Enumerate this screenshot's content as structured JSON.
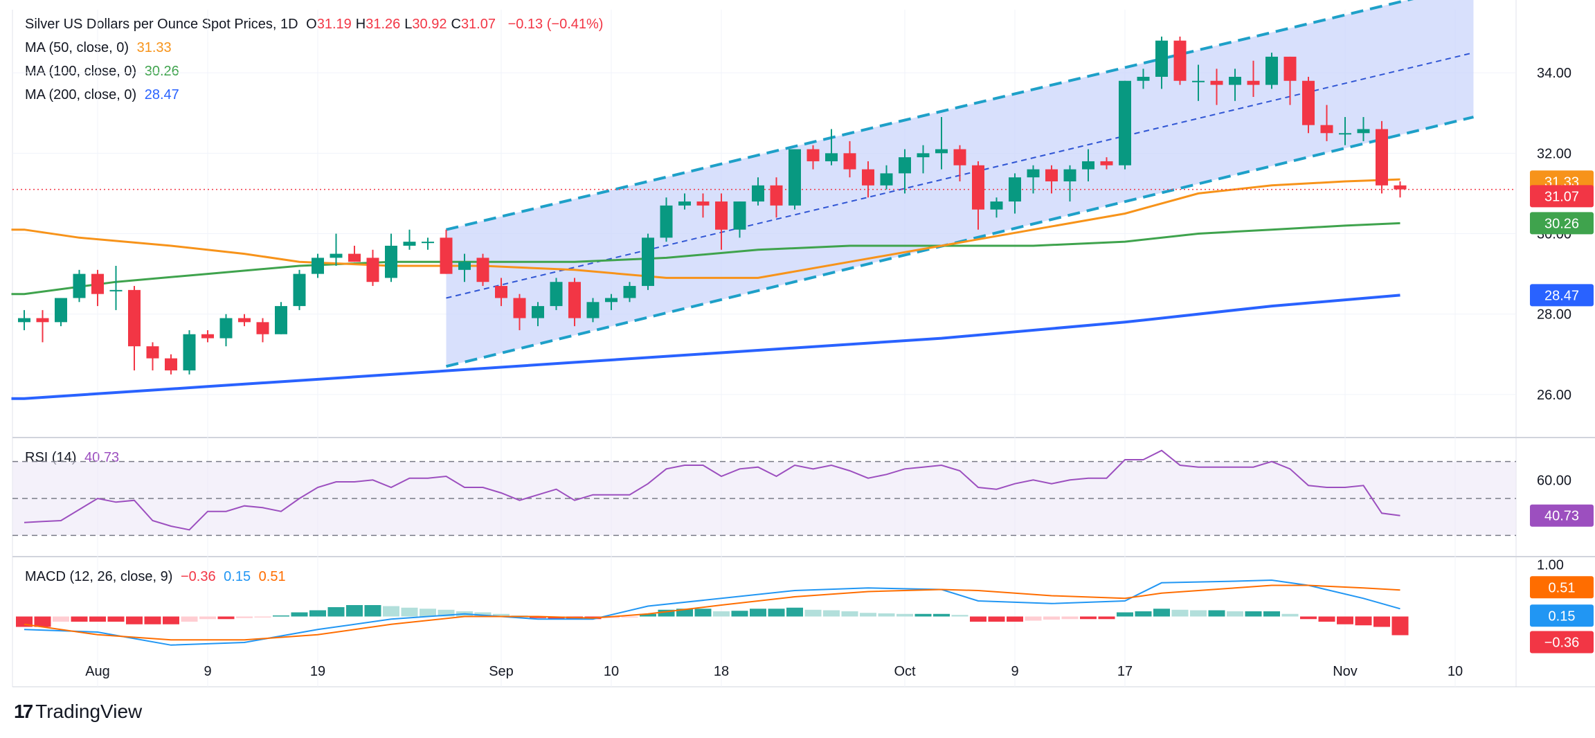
{
  "header": {
    "title": "Silver US Dollars per Ounce Spot Prices, 1D",
    "ohlc": [
      {
        "label": "O",
        "value": "31.19"
      },
      {
        "label": "H",
        "value": "31.26"
      },
      {
        "label": "L",
        "value": "30.92"
      },
      {
        "label": "C",
        "value": "31.07"
      }
    ],
    "change": "−0.13 (−0.41%)"
  },
  "indicators": {
    "ma50": {
      "label": "MA (50, close, 0)",
      "value": "31.33",
      "color": "#f7931a"
    },
    "ma100": {
      "label": "MA (100, close, 0)",
      "value": "30.26",
      "color": "#3fa34d"
    },
    "ma200": {
      "label": "MA (200, close, 0)",
      "value": "28.47",
      "color": "#2962ff"
    },
    "rsi": {
      "label": "RSI (14)",
      "value": "40.73",
      "color": "#9c4fbf"
    },
    "macd": {
      "label": "MACD (12, 26, close, 9)",
      "hist": "−0.36",
      "macd": "0.15",
      "signal": "0.51",
      "hist_color": "#f23645",
      "macd_color": "#2196f3",
      "signal_color": "#ff6d00"
    }
  },
  "price_badges": [
    {
      "text": "31.33",
      "color": "#f7931a"
    },
    {
      "text": "31.07",
      "color": "#f23645"
    },
    {
      "text": "30.26",
      "color": "#3fa34d"
    },
    {
      "text": "28.47",
      "color": "#2962ff"
    }
  ],
  "rsi_badge": {
    "text": "40.73",
    "color": "#9c4fbf"
  },
  "macd_badges": [
    {
      "text": "0.51",
      "color": "#ff6d00"
    },
    {
      "text": "0.15",
      "color": "#2196f3"
    },
    {
      "text": "−0.36",
      "color": "#f23645"
    }
  ],
  "brand": "TradingView",
  "colors": {
    "up": "#089981",
    "down": "#f23645",
    "channel": "#dbe3fb",
    "channel_line": "#1ea0c8"
  },
  "chart_data": {
    "type": "candlestick",
    "price_axis_ticks": [
      "34.00",
      "32.00",
      "30.00",
      "28.00",
      "26.00"
    ],
    "price_range": [
      25.0,
      35.5
    ],
    "rsi_ticks": [
      "60.00"
    ],
    "rsi_range": [
      20,
      80
    ],
    "macd_ticks": [
      "1.00"
    ],
    "macd_range": [
      -0.9,
      1.1
    ],
    "x_ticks": [
      {
        "label": "Aug",
        "index": 4
      },
      {
        "label": "9",
        "index": 10
      },
      {
        "label": "19",
        "index": 16
      },
      {
        "label": "Sep",
        "index": 26
      },
      {
        "label": "10",
        "index": 32
      },
      {
        "label": "18",
        "index": 38
      },
      {
        "label": "Oct",
        "index": 48
      },
      {
        "label": "9",
        "index": 54
      },
      {
        "label": "17",
        "index": 60
      },
      {
        "label": "Nov",
        "index": 72
      },
      {
        "label": "10",
        "index": 78
      }
    ],
    "candles": [
      {
        "o": 27.8,
        "h": 28.1,
        "l": 27.6,
        "c": 27.9
      },
      {
        "o": 27.9,
        "h": 28.1,
        "l": 27.3,
        "c": 27.8
      },
      {
        "o": 27.8,
        "h": 28.4,
        "l": 27.7,
        "c": 28.4
      },
      {
        "o": 28.4,
        "h": 29.1,
        "l": 28.3,
        "c": 29.0
      },
      {
        "o": 29.0,
        "h": 29.1,
        "l": 28.2,
        "c": 28.5
      },
      {
        "o": 28.6,
        "h": 29.2,
        "l": 28.1,
        "c": 28.6
      },
      {
        "o": 28.6,
        "h": 28.7,
        "l": 26.6,
        "c": 27.2
      },
      {
        "o": 27.2,
        "h": 27.3,
        "l": 26.6,
        "c": 26.9
      },
      {
        "o": 26.9,
        "h": 27.0,
        "l": 26.5,
        "c": 26.6
      },
      {
        "o": 26.6,
        "h": 27.6,
        "l": 26.5,
        "c": 27.5
      },
      {
        "o": 27.5,
        "h": 27.6,
        "l": 27.3,
        "c": 27.4
      },
      {
        "o": 27.4,
        "h": 28.0,
        "l": 27.2,
        "c": 27.9
      },
      {
        "o": 27.9,
        "h": 28.0,
        "l": 27.7,
        "c": 27.8
      },
      {
        "o": 27.8,
        "h": 27.9,
        "l": 27.3,
        "c": 27.5
      },
      {
        "o": 27.5,
        "h": 28.3,
        "l": 27.5,
        "c": 28.2
      },
      {
        "o": 28.2,
        "h": 29.1,
        "l": 28.1,
        "c": 29.0
      },
      {
        "o": 29.0,
        "h": 29.5,
        "l": 28.9,
        "c": 29.4
      },
      {
        "o": 29.4,
        "h": 30.0,
        "l": 29.2,
        "c": 29.5
      },
      {
        "o": 29.5,
        "h": 29.7,
        "l": 29.3,
        "c": 29.3
      },
      {
        "o": 29.4,
        "h": 29.6,
        "l": 28.7,
        "c": 28.8
      },
      {
        "o": 28.9,
        "h": 30.0,
        "l": 28.8,
        "c": 29.7
      },
      {
        "o": 29.7,
        "h": 30.1,
        "l": 29.6,
        "c": 29.8
      },
      {
        "o": 29.8,
        "h": 29.9,
        "l": 29.6,
        "c": 29.8
      },
      {
        "o": 29.9,
        "h": 30.1,
        "l": 29.0,
        "c": 29.0
      },
      {
        "o": 29.1,
        "h": 29.5,
        "l": 28.8,
        "c": 29.3
      },
      {
        "o": 29.4,
        "h": 29.5,
        "l": 28.7,
        "c": 28.8
      },
      {
        "o": 28.7,
        "h": 28.9,
        "l": 28.2,
        "c": 28.4
      },
      {
        "o": 28.4,
        "h": 28.5,
        "l": 27.6,
        "c": 27.9
      },
      {
        "o": 27.9,
        "h": 28.3,
        "l": 27.7,
        "c": 28.2
      },
      {
        "o": 28.2,
        "h": 28.9,
        "l": 28.1,
        "c": 28.8
      },
      {
        "o": 28.8,
        "h": 28.9,
        "l": 27.7,
        "c": 27.9
      },
      {
        "o": 27.9,
        "h": 28.4,
        "l": 27.8,
        "c": 28.3
      },
      {
        "o": 28.3,
        "h": 28.5,
        "l": 28.1,
        "c": 28.4
      },
      {
        "o": 28.4,
        "h": 28.8,
        "l": 28.3,
        "c": 28.7
      },
      {
        "o": 28.7,
        "h": 30.0,
        "l": 28.6,
        "c": 29.9
      },
      {
        "o": 29.9,
        "h": 30.9,
        "l": 29.8,
        "c": 30.7
      },
      {
        "o": 30.7,
        "h": 31.0,
        "l": 30.6,
        "c": 30.8
      },
      {
        "o": 30.8,
        "h": 31.0,
        "l": 30.4,
        "c": 30.7
      },
      {
        "o": 30.8,
        "h": 31.0,
        "l": 29.6,
        "c": 30.1
      },
      {
        "o": 30.1,
        "h": 30.8,
        "l": 29.9,
        "c": 30.8
      },
      {
        "o": 30.8,
        "h": 31.4,
        "l": 30.7,
        "c": 31.2
      },
      {
        "o": 31.2,
        "h": 31.4,
        "l": 30.4,
        "c": 30.7
      },
      {
        "o": 30.7,
        "h": 32.1,
        "l": 30.6,
        "c": 32.1
      },
      {
        "o": 32.1,
        "h": 32.2,
        "l": 31.6,
        "c": 31.8
      },
      {
        "o": 31.8,
        "h": 32.6,
        "l": 31.7,
        "c": 32.0
      },
      {
        "o": 32.0,
        "h": 32.3,
        "l": 31.4,
        "c": 31.6
      },
      {
        "o": 31.6,
        "h": 31.8,
        "l": 30.9,
        "c": 31.2
      },
      {
        "o": 31.2,
        "h": 31.7,
        "l": 31.1,
        "c": 31.5
      },
      {
        "o": 31.5,
        "h": 32.1,
        "l": 31.0,
        "c": 31.9
      },
      {
        "o": 31.9,
        "h": 32.2,
        "l": 31.5,
        "c": 32.0
      },
      {
        "o": 32.0,
        "h": 32.9,
        "l": 31.6,
        "c": 32.1
      },
      {
        "o": 32.1,
        "h": 32.2,
        "l": 31.3,
        "c": 31.7
      },
      {
        "o": 31.7,
        "h": 31.8,
        "l": 30.1,
        "c": 30.6
      },
      {
        "o": 30.6,
        "h": 30.9,
        "l": 30.4,
        "c": 30.8
      },
      {
        "o": 30.8,
        "h": 31.5,
        "l": 30.5,
        "c": 31.4
      },
      {
        "o": 31.4,
        "h": 31.7,
        "l": 31.0,
        "c": 31.6
      },
      {
        "o": 31.6,
        "h": 31.7,
        "l": 31.0,
        "c": 31.3
      },
      {
        "o": 31.3,
        "h": 31.7,
        "l": 30.8,
        "c": 31.6
      },
      {
        "o": 31.6,
        "h": 32.1,
        "l": 31.3,
        "c": 31.8
      },
      {
        "o": 31.8,
        "h": 31.9,
        "l": 31.6,
        "c": 31.7
      },
      {
        "o": 31.7,
        "h": 33.8,
        "l": 31.6,
        "c": 33.8
      },
      {
        "o": 33.8,
        "h": 34.1,
        "l": 33.6,
        "c": 33.9
      },
      {
        "o": 33.9,
        "h": 34.9,
        "l": 33.6,
        "c": 34.8
      },
      {
        "o": 34.8,
        "h": 34.9,
        "l": 33.7,
        "c": 33.8
      },
      {
        "o": 33.8,
        "h": 34.2,
        "l": 33.3,
        "c": 33.8
      },
      {
        "o": 33.8,
        "h": 34.1,
        "l": 33.2,
        "c": 33.7
      },
      {
        "o": 33.7,
        "h": 34.1,
        "l": 33.3,
        "c": 33.9
      },
      {
        "o": 33.8,
        "h": 34.3,
        "l": 33.4,
        "c": 33.7
      },
      {
        "o": 33.7,
        "h": 34.5,
        "l": 33.6,
        "c": 34.4
      },
      {
        "o": 34.4,
        "h": 34.4,
        "l": 33.2,
        "c": 33.8
      },
      {
        "o": 33.8,
        "h": 33.9,
        "l": 32.5,
        "c": 32.7
      },
      {
        "o": 32.7,
        "h": 33.2,
        "l": 32.3,
        "c": 32.5
      },
      {
        "o": 32.5,
        "h": 32.9,
        "l": 32.2,
        "c": 32.5
      },
      {
        "o": 32.5,
        "h": 32.9,
        "l": 32.3,
        "c": 32.6
      },
      {
        "o": 32.6,
        "h": 32.8,
        "l": 31.0,
        "c": 31.2
      },
      {
        "o": 31.2,
        "h": 31.3,
        "l": 30.9,
        "c": 31.1
      }
    ],
    "ma50": [
      [
        0,
        30.1
      ],
      [
        3,
        29.9
      ],
      [
        8,
        29.7
      ],
      [
        12,
        29.5
      ],
      [
        15,
        29.3
      ],
      [
        20,
        29.2
      ],
      [
        25,
        29.2
      ],
      [
        30,
        29.1
      ],
      [
        35,
        28.9
      ],
      [
        40,
        28.9
      ],
      [
        45,
        29.3
      ],
      [
        50,
        29.7
      ],
      [
        55,
        30.1
      ],
      [
        60,
        30.5
      ],
      [
        64,
        31.0
      ],
      [
        68,
        31.2
      ],
      [
        72,
        31.3
      ],
      [
        75,
        31.35
      ]
    ],
    "ma100": [
      [
        0,
        28.5
      ],
      [
        5,
        28.8
      ],
      [
        10,
        29.0
      ],
      [
        15,
        29.2
      ],
      [
        20,
        29.3
      ],
      [
        25,
        29.3
      ],
      [
        30,
        29.3
      ],
      [
        35,
        29.4
      ],
      [
        40,
        29.6
      ],
      [
        45,
        29.7
      ],
      [
        50,
        29.7
      ],
      [
        55,
        29.7
      ],
      [
        60,
        29.8
      ],
      [
        64,
        30.0
      ],
      [
        68,
        30.1
      ],
      [
        72,
        30.2
      ],
      [
        75,
        30.26
      ]
    ],
    "ma200": [
      [
        0,
        25.9
      ],
      [
        10,
        26.2
      ],
      [
        20,
        26.5
      ],
      [
        30,
        26.8
      ],
      [
        40,
        27.1
      ],
      [
        50,
        27.4
      ],
      [
        60,
        27.8
      ],
      [
        68,
        28.2
      ],
      [
        75,
        28.47
      ]
    ],
    "channel": {
      "start_index": 23,
      "end_index": 79,
      "lower_start": 26.7,
      "upper_start": 30.1,
      "lower_end": 32.9,
      "upper_end": 36.2,
      "mid_start": 28.4,
      "mid_end": 34.5
    },
    "rsi": [
      [
        0,
        37
      ],
      [
        1,
        37.5
      ],
      [
        2,
        38
      ],
      [
        3,
        44
      ],
      [
        4,
        50
      ],
      [
        5,
        48
      ],
      [
        6,
        49
      ],
      [
        7,
        38
      ],
      [
        8,
        35
      ],
      [
        9,
        33
      ],
      [
        10,
        43
      ],
      [
        11,
        43
      ],
      [
        12,
        46
      ],
      [
        13,
        45
      ],
      [
        14,
        43
      ],
      [
        15,
        50
      ],
      [
        16,
        56
      ],
      [
        17,
        59
      ],
      [
        18,
        59
      ],
      [
        19,
        60
      ],
      [
        20,
        56
      ],
      [
        21,
        61
      ],
      [
        22,
        61
      ],
      [
        23,
        62
      ],
      [
        24,
        56
      ],
      [
        25,
        56
      ],
      [
        26,
        53
      ],
      [
        27,
        49
      ],
      [
        28,
        52
      ],
      [
        29,
        55
      ],
      [
        30,
        49
      ],
      [
        31,
        52
      ],
      [
        32,
        52
      ],
      [
        33,
        52
      ],
      [
        34,
        58
      ],
      [
        35,
        66
      ],
      [
        36,
        68
      ],
      [
        37,
        68
      ],
      [
        38,
        62
      ],
      [
        39,
        66
      ],
      [
        40,
        67
      ],
      [
        41,
        62
      ],
      [
        42,
        68
      ],
      [
        43,
        66
      ],
      [
        44,
        68
      ],
      [
        45,
        65
      ],
      [
        46,
        61
      ],
      [
        47,
        63
      ],
      [
        48,
        66
      ],
      [
        49,
        67
      ],
      [
        50,
        68
      ],
      [
        51,
        65
      ],
      [
        52,
        56
      ],
      [
        53,
        55
      ],
      [
        54,
        58
      ],
      [
        55,
        60
      ],
      [
        56,
        58
      ],
      [
        57,
        60
      ],
      [
        58,
        61
      ],
      [
        59,
        61
      ],
      [
        60,
        71
      ],
      [
        61,
        71
      ],
      [
        62,
        76
      ],
      [
        63,
        68
      ],
      [
        64,
        67
      ],
      [
        65,
        67
      ],
      [
        66,
        67
      ],
      [
        67,
        67
      ],
      [
        68,
        70
      ],
      [
        69,
        66
      ],
      [
        70,
        57
      ],
      [
        71,
        56
      ],
      [
        72,
        56
      ],
      [
        73,
        57
      ],
      [
        74,
        42
      ],
      [
        75,
        40.73
      ]
    ],
    "rsi_levels": [
      70,
      50,
      30
    ],
    "macd": [
      [
        0,
        -0.25
      ],
      [
        4,
        -0.3
      ],
      [
        8,
        -0.55
      ],
      [
        12,
        -0.5
      ],
      [
        16,
        -0.25
      ],
      [
        20,
        -0.05
      ],
      [
        24,
        0.05
      ],
      [
        28,
        -0.05
      ],
      [
        31,
        -0.05
      ],
      [
        34,
        0.2
      ],
      [
        38,
        0.35
      ],
      [
        42,
        0.5
      ],
      [
        46,
        0.55
      ],
      [
        50,
        0.52
      ],
      [
        52,
        0.3
      ],
      [
        56,
        0.25
      ],
      [
        60,
        0.3
      ],
      [
        62,
        0.65
      ],
      [
        66,
        0.68
      ],
      [
        68,
        0.7
      ],
      [
        70,
        0.6
      ],
      [
        73,
        0.35
      ],
      [
        75,
        0.15
      ]
    ],
    "signal": [
      [
        0,
        -0.15
      ],
      [
        4,
        -0.35
      ],
      [
        8,
        -0.45
      ],
      [
        12,
        -0.45
      ],
      [
        16,
        -0.35
      ],
      [
        20,
        -0.15
      ],
      [
        24,
        0.0
      ],
      [
        28,
        0.0
      ],
      [
        31,
        -0.03
      ],
      [
        34,
        0.05
      ],
      [
        38,
        0.22
      ],
      [
        42,
        0.38
      ],
      [
        46,
        0.48
      ],
      [
        50,
        0.52
      ],
      [
        52,
        0.5
      ],
      [
        56,
        0.4
      ],
      [
        60,
        0.35
      ],
      [
        62,
        0.45
      ],
      [
        66,
        0.55
      ],
      [
        68,
        0.6
      ],
      [
        70,
        0.6
      ],
      [
        73,
        0.55
      ],
      [
        75,
        0.51
      ]
    ],
    "histogram": [
      -0.2,
      -0.2,
      -0.1,
      -0.1,
      -0.1,
      -0.1,
      -0.15,
      -0.15,
      -0.15,
      -0.1,
      -0.05,
      -0.05,
      -0.03,
      -0.02,
      0.02,
      0.08,
      0.12,
      0.18,
      0.22,
      0.22,
      0.2,
      0.17,
      0.15,
      0.13,
      0.1,
      0.08,
      0.05,
      0.02,
      -0.03,
      -0.05,
      -0.05,
      -0.05,
      -0.03,
      -0.02,
      0.05,
      0.13,
      0.15,
      0.15,
      0.1,
      0.11,
      0.15,
      0.15,
      0.17,
      0.13,
      0.12,
      0.1,
      0.07,
      0.06,
      0.05,
      0.05,
      0.05,
      0.03,
      -0.1,
      -0.1,
      -0.1,
      -0.08,
      -0.06,
      -0.05,
      -0.05,
      -0.05,
      0.08,
      0.1,
      0.15,
      0.13,
      0.12,
      0.12,
      0.1,
      0.1,
      0.1,
      0.05,
      -0.05,
      -0.1,
      -0.15,
      -0.17,
      -0.2,
      -0.36
    ]
  }
}
